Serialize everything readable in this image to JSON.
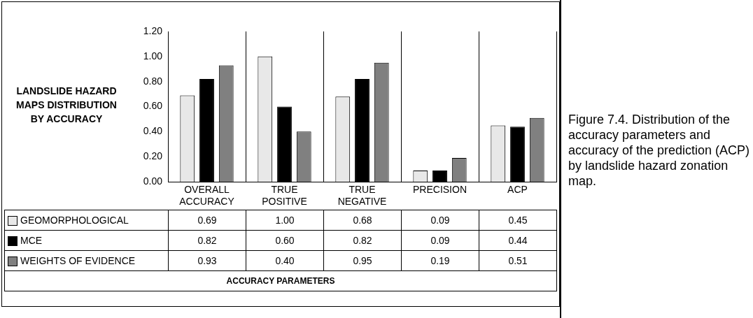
{
  "chart_data": {
    "type": "bar",
    "ylabel": "LANDSLIDE HAZARD MAPS DISTRIBUTION BY ACCURACY",
    "categories": [
      "OVERALL ACCURACY",
      "TRUE POSITIVE",
      "TRUE NEGATIVE",
      "PRECISION",
      "ACP"
    ],
    "series": [
      {
        "name": "GEOMORPHOLOGICAL",
        "color": "#e8e8e8",
        "values": [
          0.69,
          1.0,
          0.68,
          0.09,
          0.45
        ],
        "value_labels": [
          "0.69",
          "1.00",
          "0.68",
          "0.09",
          "0.45"
        ]
      },
      {
        "name": "MCE",
        "color": "#000000",
        "values": [
          0.82,
          0.6,
          0.82,
          0.09,
          0.44
        ],
        "value_labels": [
          "0.82",
          "0.60",
          "0.82",
          "0.09",
          "0.44"
        ]
      },
      {
        "name": "WEIGHTS OF EVIDENCE",
        "color": "#808080",
        "values": [
          0.93,
          0.4,
          0.95,
          0.19,
          0.51
        ],
        "value_labels": [
          "0.93",
          "0.40",
          "0.95",
          "0.19",
          "0.51"
        ]
      }
    ],
    "ylim": [
      0,
      1.2
    ],
    "yticks": [
      {
        "value": 0,
        "label": "0.00"
      },
      {
        "value": 0.2,
        "label": "0.20"
      },
      {
        "value": 0.4,
        "label": "0.40"
      },
      {
        "value": 0.6,
        "label": "0.60"
      },
      {
        "value": 0.8,
        "label": "0.80"
      },
      {
        "value": 1,
        "label": "1.00"
      },
      {
        "value": 1.2,
        "label": "1.20"
      }
    ],
    "grid": "x",
    "legend": "bottom",
    "annotations": [
      "ACCURACY PARAMETERS",
      "Figure 7.4. Distribution of the accuracy parameters and accuracy of the prediction (ACP) by landslide hazard zonation map."
    ]
  }
}
